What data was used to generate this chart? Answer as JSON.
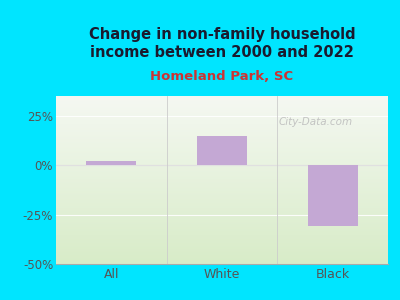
{
  "categories": [
    "All",
    "White",
    "Black"
  ],
  "values": [
    2.0,
    15.0,
    -31.0
  ],
  "bar_color": "#c4a8d4",
  "title": "Change in non-family household\nincome between 2000 and 2022",
  "subtitle": "Homeland Park, SC",
  "title_color": "#1a1a2e",
  "subtitle_color": "#cc3333",
  "tick_color": "#555555",
  "ylim": [
    -50,
    35
  ],
  "yticks": [
    -50,
    -25,
    0,
    25
  ],
  "ytick_labels": [
    "-50%",
    "-25%",
    "0%",
    "25%"
  ],
  "background_outer": "#00e5ff",
  "bg_top_color": "#f5f8f2",
  "bg_bottom_color": "#d8ecc8",
  "watermark": "City-Data.com",
  "bar_width": 0.45,
  "divider_color": "#cccccc",
  "zeroline_color": "#dddddd"
}
